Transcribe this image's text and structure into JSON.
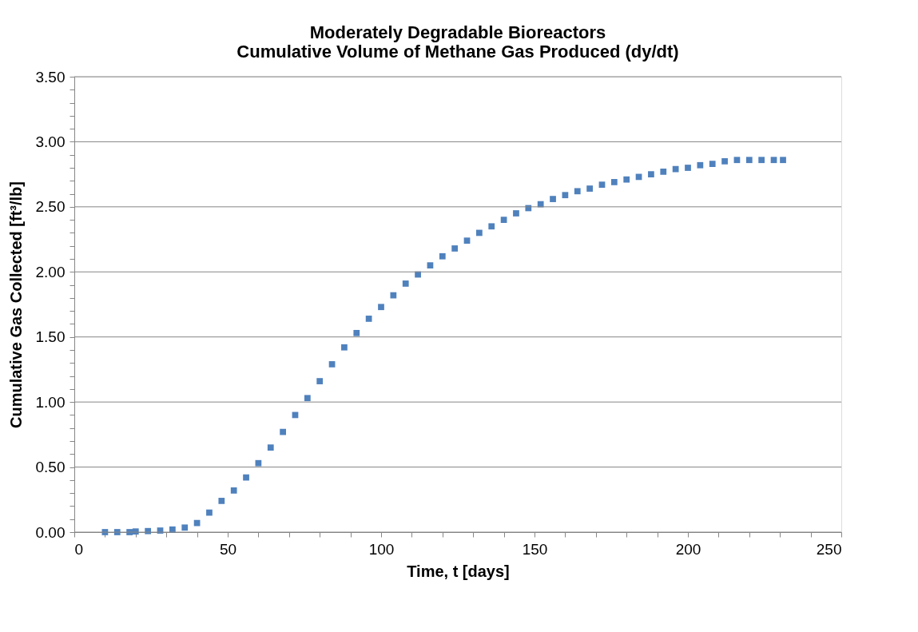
{
  "chart_data": {
    "type": "scatter",
    "title": "Moderately Degradable Bioreactors\nCumulative Volume of Methane Gas Produced (dy/dt)",
    "xlabel": "Time, t [days]",
    "ylabel": "Cumulative Gas Collected [ft³/lb]",
    "marker": "square",
    "grid": "y",
    "legend": false,
    "x": [
      10,
      14,
      18,
      20,
      24,
      28,
      32,
      36,
      40,
      44,
      48,
      52,
      56,
      60,
      64,
      68,
      72,
      76,
      80,
      84,
      88,
      92,
      96,
      100,
      104,
      108,
      112,
      116,
      120,
      124,
      128,
      132,
      136,
      140,
      144,
      148,
      152,
      156,
      160,
      164,
      168,
      172,
      176,
      180,
      184,
      188,
      192,
      196,
      200,
      204,
      208,
      212,
      216,
      220,
      224,
      228,
      231
    ],
    "series": [
      {
        "color": "#4f81bd",
        "values": [
          0,
          0,
          0,
          0.005,
          0.008,
          0.012,
          0.02,
          0.035,
          0.07,
          0.15,
          0.24,
          0.32,
          0.42,
          0.53,
          0.65,
          0.77,
          0.9,
          1.03,
          1.16,
          1.29,
          1.42,
          1.53,
          1.64,
          1.73,
          1.82,
          1.91,
          1.98,
          2.05,
          2.12,
          2.18,
          2.24,
          2.3,
          2.35,
          2.4,
          2.45,
          2.49,
          2.52,
          2.56,
          2.59,
          2.62,
          2.64,
          2.67,
          2.69,
          2.71,
          2.73,
          2.75,
          2.77,
          2.79,
          2.8,
          2.82,
          2.83,
          2.85,
          2.86,
          2.86,
          2.86,
          2.86,
          2.86
        ]
      }
    ],
    "xlim": [
      0,
      250
    ],
    "ylim": [
      0,
      3.5
    ],
    "xticks": [
      0,
      {
        "value": 10,
        "label": null
      },
      {
        "value": 20,
        "label": null
      },
      {
        "value": 30,
        "label": null
      },
      {
        "value": 40,
        "label": null
      },
      50,
      {
        "value": 60,
        "label": null
      },
      {
        "value": 70,
        "label": null
      },
      {
        "value": 80,
        "label": null
      },
      {
        "value": 90,
        "label": null
      },
      100,
      {
        "value": 110,
        "label": null
      },
      {
        "value": 120,
        "label": null
      },
      {
        "value": 130,
        "label": null
      },
      {
        "value": 140,
        "label": null
      },
      150,
      {
        "value": 160,
        "label": null
      },
      {
        "value": 170,
        "label": null
      },
      {
        "value": 180,
        "label": null
      },
      {
        "value": 190,
        "label": null
      },
      200,
      {
        "value": 210,
        "label": null
      },
      {
        "value": 220,
        "label": null
      },
      {
        "value": 230,
        "label": null
      },
      {
        "value": 240,
        "label": null
      },
      250
    ],
    "yticks": [
      {
        "value": 0,
        "label": "0.00"
      },
      {
        "value": 0.1,
        "label": null
      },
      {
        "value": 0.2,
        "label": null
      },
      {
        "value": 0.3,
        "label": null
      },
      {
        "value": 0.4,
        "label": null
      },
      {
        "value": 0.5,
        "label": "0.50"
      },
      {
        "value": 0.6,
        "label": null
      },
      {
        "value": 0.7,
        "label": null
      },
      {
        "value": 0.8,
        "label": null
      },
      {
        "value": 0.9,
        "label": null
      },
      {
        "value": 1,
        "label": "1.00"
      },
      {
        "value": 1.1,
        "label": null
      },
      {
        "value": 1.2,
        "label": null
      },
      {
        "value": 1.3,
        "label": null
      },
      {
        "value": 1.4,
        "label": null
      },
      {
        "value": 1.5,
        "label": "1.50"
      },
      {
        "value": 1.6,
        "label": null
      },
      {
        "value": 1.7,
        "label": null
      },
      {
        "value": 1.8,
        "label": null
      },
      {
        "value": 1.9,
        "label": null
      },
      {
        "value": 2,
        "label": "2.00"
      },
      {
        "value": 2.1,
        "label": null
      },
      {
        "value": 2.2,
        "label": null
      },
      {
        "value": 2.3,
        "label": null
      },
      {
        "value": 2.4,
        "label": null
      },
      {
        "value": 2.5,
        "label": "2.50"
      },
      {
        "value": 2.6,
        "label": null
      },
      {
        "value": 2.7,
        "label": null
      },
      {
        "value": 2.8,
        "label": null
      },
      {
        "value": 2.9,
        "label": null
      },
      {
        "value": 3,
        "label": "3.00"
      },
      {
        "value": 3.1,
        "label": null
      },
      {
        "value": 3.2,
        "label": null
      },
      {
        "value": 3.3,
        "label": null
      },
      {
        "value": 3.4,
        "label": null
      },
      {
        "value": 3.5,
        "label": "3.50"
      }
    ]
  }
}
